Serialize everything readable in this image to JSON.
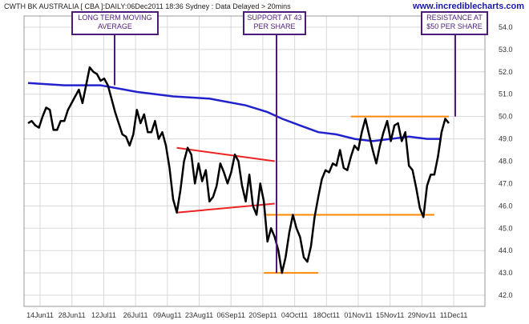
{
  "header": {
    "left": "CWTH BK AUSTRALIA [ CBA ]:DAILY:06Dec2011 18:36 Sydney : Data Delayed > 20mins",
    "site": "www.incrediblecharts.com"
  },
  "annotations": [
    {
      "id": "ma",
      "lines": [
        "LONG TERM MOVING",
        "AVERAGE"
      ]
    },
    {
      "id": "support",
      "lines": [
        "SUPPORT AT 43",
        "PER SHARE"
      ]
    },
    {
      "id": "resistance",
      "lines": [
        "RESISTANCE AT",
        "$50 PER SHARE"
      ]
    }
  ],
  "colors": {
    "price": "#000000",
    "moving_average": "#2222cc",
    "trend_lines": "#ee2222",
    "levels": "#ff8800",
    "callout": "#4b1c7a",
    "grid": "#d8d8d8"
  },
  "chart_data": {
    "type": "line",
    "title": "",
    "xlabel": "",
    "ylabel": "",
    "ylim": [
      41.5,
      54.5
    ],
    "y_ticks": [
      "42.0",
      "43.0",
      "44.0",
      "45.0",
      "46.0",
      "47.0",
      "48.0",
      "49.0",
      "50.0",
      "51.0",
      "52.0",
      "53.0",
      "54.0"
    ],
    "x_ticks": [
      "14Jun11",
      "28Jun11",
      "12Jul11",
      "26Jul11",
      "09Aug11",
      "23Aug11",
      "06Sep11",
      "20Sep11",
      "04Oct11",
      "18Oct11",
      "01Nov11",
      "15Nov11",
      "29Nov11",
      "11Dec11"
    ],
    "grid": true,
    "series": [
      {
        "values": [
          [
            0,
            49.7
          ],
          [
            1,
            49.8
          ],
          [
            2,
            49.6
          ],
          [
            3,
            49.5
          ],
          [
            4,
            50.0
          ],
          [
            5,
            50.4
          ],
          [
            6,
            50.3
          ],
          [
            7,
            49.4
          ],
          [
            8,
            49.4
          ],
          [
            9,
            49.8
          ],
          [
            10,
            49.8
          ],
          [
            11,
            50.3
          ],
          [
            12,
            50.6
          ],
          [
            13,
            50.9
          ],
          [
            14,
            51.2
          ],
          [
            15,
            50.6
          ],
          [
            16,
            51.4
          ],
          [
            17,
            52.2
          ],
          [
            18,
            52.0
          ],
          [
            19,
            51.9
          ],
          [
            20,
            51.6
          ],
          [
            21,
            51.7
          ],
          [
            22,
            51.4
          ],
          [
            23,
            50.8
          ],
          [
            24,
            50.2
          ],
          [
            25,
            49.7
          ],
          [
            26,
            49.2
          ],
          [
            27,
            49.1
          ],
          [
            28,
            48.7
          ],
          [
            29,
            49.2
          ],
          [
            30,
            50.3
          ],
          [
            31,
            49.7
          ],
          [
            32,
            50.1
          ],
          [
            33,
            49.3
          ],
          [
            34,
            49.3
          ],
          [
            35,
            49.8
          ],
          [
            36,
            49.0
          ],
          [
            37,
            49.3
          ],
          [
            38,
            48.7
          ],
          [
            39,
            47.7
          ],
          [
            40,
            46.3
          ],
          [
            41,
            45.7
          ],
          [
            42,
            46.7
          ],
          [
            43,
            48.0
          ],
          [
            44,
            48.6
          ],
          [
            45,
            48.3
          ],
          [
            46,
            47.0
          ],
          [
            47,
            47.9
          ],
          [
            48,
            47.1
          ],
          [
            49,
            47.6
          ],
          [
            50,
            46.2
          ],
          [
            51,
            46.4
          ],
          [
            52,
            46.9
          ],
          [
            53,
            47.9
          ],
          [
            54,
            47.5
          ],
          [
            55,
            47.0
          ],
          [
            56,
            47.5
          ],
          [
            57,
            48.3
          ],
          [
            58,
            48.0
          ],
          [
            59,
            46.9
          ],
          [
            60,
            46.2
          ],
          [
            61,
            47.4
          ],
          [
            62,
            46.0
          ],
          [
            63,
            45.6
          ],
          [
            64,
            47.0
          ],
          [
            65,
            46.2
          ],
          [
            66,
            44.4
          ],
          [
            67,
            45.0
          ],
          [
            68,
            44.6
          ],
          [
            69,
            44.0
          ],
          [
            70,
            43.0
          ],
          [
            71,
            43.7
          ],
          [
            72,
            44.8
          ],
          [
            73,
            45.6
          ],
          [
            74,
            45.0
          ],
          [
            75,
            44.6
          ],
          [
            76,
            43.7
          ],
          [
            77,
            43.5
          ],
          [
            78,
            44.2
          ],
          [
            79,
            45.5
          ],
          [
            80,
            46.4
          ],
          [
            81,
            47.2
          ],
          [
            82,
            47.6
          ],
          [
            83,
            47.5
          ],
          [
            84,
            47.9
          ],
          [
            85,
            47.8
          ],
          [
            86,
            48.5
          ],
          [
            87,
            47.7
          ],
          [
            88,
            47.6
          ],
          [
            89,
            48.2
          ],
          [
            90,
            48.7
          ],
          [
            91,
            48.5
          ],
          [
            92,
            49.3
          ],
          [
            93,
            49.9
          ],
          [
            94,
            49.2
          ],
          [
            95,
            48.5
          ],
          [
            96,
            47.9
          ],
          [
            97,
            48.7
          ],
          [
            98,
            49.3
          ],
          [
            99,
            49.8
          ],
          [
            100,
            48.9
          ],
          [
            101,
            49.6
          ],
          [
            102,
            49.7
          ],
          [
            103,
            48.9
          ],
          [
            104,
            49.3
          ],
          [
            105,
            47.8
          ],
          [
            106,
            47.6
          ],
          [
            107,
            46.8
          ],
          [
            108,
            45.9
          ],
          [
            109,
            45.5
          ],
          [
            110,
            46.9
          ],
          [
            111,
            47.4
          ],
          [
            112,
            47.4
          ],
          [
            113,
            48.2
          ],
          [
            114,
            49.3
          ],
          [
            115,
            49.9
          ],
          [
            116,
            49.7
          ]
        ]
      },
      {
        "values": [
          [
            0,
            51.5
          ],
          [
            10,
            51.4
          ],
          [
            20,
            51.4
          ],
          [
            30,
            51.1
          ],
          [
            40,
            50.9
          ],
          [
            50,
            50.8
          ],
          [
            60,
            50.5
          ],
          [
            66,
            50.2
          ],
          [
            70,
            49.9
          ],
          [
            75,
            49.6
          ],
          [
            80,
            49.3
          ],
          [
            85,
            49.2
          ],
          [
            90,
            49.0
          ],
          [
            95,
            48.9
          ],
          [
            100,
            49.0
          ],
          [
            105,
            49.1
          ],
          [
            110,
            49.0
          ],
          [
            114,
            49.0
          ]
        ]
      }
    ],
    "trend_lines": [
      {
        "from": [
          41,
          48.6
        ],
        "to": [
          68,
          48.0
        ]
      },
      {
        "from": [
          41,
          45.7
        ],
        "to": [
          68,
          46.1
        ]
      }
    ],
    "horizontal_levels": [
      {
        "y": 50.0,
        "x_from": 89,
        "x_to": 116
      },
      {
        "y": 45.6,
        "x_from": 65,
        "x_to": 112
      },
      {
        "y": 43.0,
        "x_from": 65,
        "x_to": 80
      }
    ]
  }
}
